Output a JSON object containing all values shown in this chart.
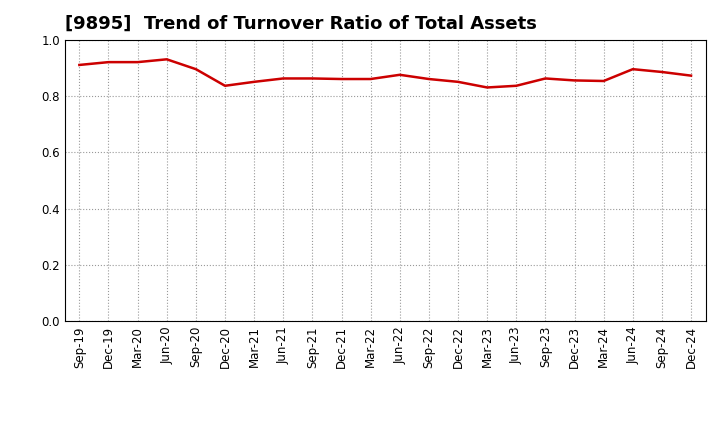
{
  "title": "[9895]  Trend of Turnover Ratio of Total Assets",
  "x_labels": [
    "Sep-19",
    "Dec-19",
    "Mar-20",
    "Jun-20",
    "Sep-20",
    "Dec-20",
    "Mar-21",
    "Jun-21",
    "Sep-21",
    "Dec-21",
    "Mar-22",
    "Jun-22",
    "Sep-22",
    "Dec-22",
    "Mar-23",
    "Jun-23",
    "Sep-23",
    "Dec-23",
    "Mar-24",
    "Jun-24",
    "Sep-24",
    "Dec-24"
  ],
  "values": [
    0.91,
    0.92,
    0.92,
    0.93,
    0.895,
    0.836,
    0.85,
    0.862,
    0.862,
    0.86,
    0.86,
    0.875,
    0.86,
    0.85,
    0.83,
    0.836,
    0.862,
    0.855,
    0.853,
    0.895,
    0.885,
    0.872
  ],
  "line_color": "#cc0000",
  "line_width": 1.8,
  "bg_color": "#ffffff",
  "plot_bg_color": "#ffffff",
  "grid_color": "#999999",
  "ylim": [
    0.0,
    1.0
  ],
  "yticks": [
    0.0,
    0.2,
    0.4,
    0.6,
    0.8,
    1.0
  ],
  "title_fontsize": 13,
  "tick_fontsize": 8.5
}
